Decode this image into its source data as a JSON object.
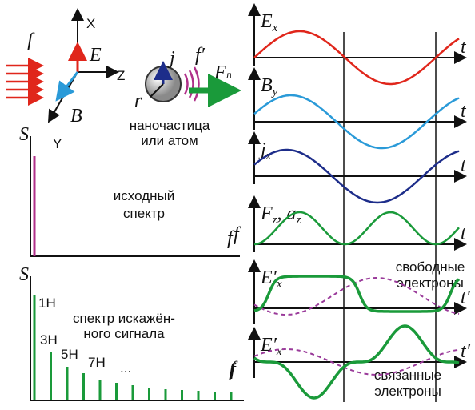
{
  "scheme": {
    "incident": "f",
    "axis_x": "X",
    "field_e": "E",
    "axis_z": "Z",
    "field_b": "B",
    "axis_y": "Y",
    "current": "j",
    "scattered": "f′",
    "radius": "r",
    "force": {
      "main": "F",
      "sub": "л"
    },
    "particle": [
      "наночастица",
      "или атом"
    ]
  },
  "spectrum_initial": {
    "axis_s": "S",
    "axis_f": "f",
    "caption": [
      "исходный",
      "спектр"
    ]
  },
  "spectrum_distorted": {
    "axis_s": "S",
    "axis_f": "f",
    "caption": [
      "спектр искажён-",
      "ного сигнала"
    ],
    "harmonics": [
      "1H",
      "3H",
      "5H",
      "7H",
      "..."
    ]
  },
  "plots": [
    {
      "main": "E",
      "sub": "x",
      "axis": "t"
    },
    {
      "main": "B",
      "sub": "y",
      "axis": "t"
    },
    {
      "main": "j",
      "sub": "x",
      "axis": "t"
    },
    {
      "main": "F",
      "sub": "z",
      "sep": ", ",
      "main2": "a",
      "sub2": "z",
      "axis": "t"
    },
    {
      "main": "E′",
      "sub": "x",
      "axis": "t′",
      "note": [
        "свободные",
        "электроны"
      ]
    },
    {
      "main": "E′",
      "sub": "x",
      "axis": "t′",
      "note": [
        "связанные",
        "электроны"
      ]
    }
  ],
  "plot_f_labels": [
    "f",
    "f"
  ]
}
